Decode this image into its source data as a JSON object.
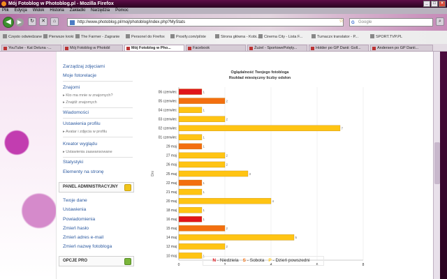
{
  "window": {
    "title": "Mój Fotoblog w Photoblog.pl - Mozilla Firefox"
  },
  "menubar": [
    "Plik",
    "Edycja",
    "Widok",
    "Historia",
    "Zakładki",
    "Narzędzia",
    "Pomoc"
  ],
  "toolbar": {
    "url": "http://www.photoblog.pl/moj/photoblog/index.php?MyStats",
    "search_placeholder": "Google",
    "icons": [
      "back-arrow",
      "forward-arrow",
      "reload",
      "stop",
      "home",
      "bookmark-star",
      "search"
    ]
  },
  "bookmarks": [
    "Często odwiedzane",
    "Pierwsze kroki",
    "The Farmer - Zagranie",
    "Personel do Firefox",
    "Proxify.com/pl/ste",
    "Strona główna - Kobi...",
    "Cinema City - Lista F...",
    "Tumaczx translator - P...",
    "SPORT.TVP.PL"
  ],
  "tabs": [
    {
      "label": "YouTube - Kat Deluna -...",
      "active": false
    },
    {
      "label": "Mój Fotoblog w Photobl",
      "active": false
    },
    {
      "label": "Mój Fotoblog w Pho...",
      "active": true
    },
    {
      "label": "Facebook",
      "active": false
    },
    {
      "label": "Żużel - SportowePotęty...",
      "active": false
    },
    {
      "label": "Holder po GP Danii: Goll...",
      "active": false
    },
    {
      "label": "Andersen po GP Danii...",
      "active": false
    }
  ],
  "sidebar": {
    "links_top": [
      "Zarządzaj zdjęciami",
      "Moje fotorelacje"
    ],
    "friends_head": "Znajomi",
    "friends_sub": [
      "Kto ma mnie w znajomych?",
      "Znajdź znajomych"
    ],
    "links_mid": [
      "Wiadomości",
      "Ustawienia profilu"
    ],
    "profile_sub": [
      "Avatar i zdjęcia w profilu"
    ],
    "creator_head": "Kreator wyglądu",
    "creator_sub": [
      "Ustawienia zaawansowane"
    ],
    "links_bottom": [
      "Statystyki",
      "Elementy na stronę"
    ],
    "admin_panel": "PANEL ADMINISTRACYJNY",
    "admin_links": [
      "Twoje dane",
      "Ustawienia",
      "Powiadomienia",
      "Zmień hasło",
      "Zmień adres e-mail",
      "Zmień nazwę fotobloga"
    ],
    "pro_panel": "OPCJE PRO"
  },
  "chart_data": {
    "type": "bar",
    "orientation": "horizontal",
    "title": "Oglądalność Twojego fotobloga",
    "subtitle": "Rozkład miesięczny liczby odsłon",
    "ylabel": "Dni",
    "xlim": [
      0,
      8
    ],
    "xticks": [
      0,
      2,
      4,
      6,
      8
    ],
    "categories": [
      "06 czerwiec",
      "05 czerwiec",
      "04 czerwiec",
      "03 czerwiec",
      "02 czerwiec",
      "01 czerwiec",
      "29 maj",
      "27 maj",
      "26 maj",
      "25 maj",
      "22 maj",
      "21 maj",
      "20 maj",
      "18 maj",
      "16 maj",
      "15 maj",
      "14 maj",
      "12 maj",
      "10 maj"
    ],
    "values": [
      1,
      2,
      1,
      2,
      7,
      1,
      1,
      2,
      2,
      3,
      1,
      1,
      4,
      1,
      1,
      2,
      5,
      2,
      1
    ],
    "day_type": [
      "N",
      "S",
      "P",
      "P",
      "P",
      "P",
      "S",
      "P",
      "P",
      "P",
      "S",
      "P",
      "P",
      "P",
      "N",
      "S",
      "P",
      "P",
      "P"
    ],
    "colors": {
      "N": "#e0141b",
      "S": "#f36f10",
      "P": "#ffc413"
    },
    "legend": [
      {
        "key": "N",
        "dash": " - ",
        "text": "Niedziela"
      },
      {
        "key": "S",
        "dash": " - ",
        "text": "Sobota"
      },
      {
        "key": "P",
        "dash": " - ",
        "text": "Dzień powszedni"
      }
    ]
  }
}
